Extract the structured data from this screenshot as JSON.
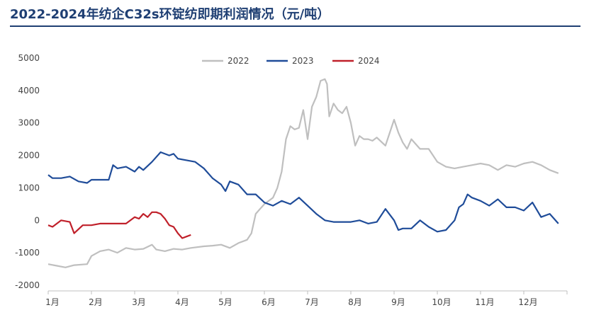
{
  "title": "2022-2024年纺企C32s环锭纺即期利润情况（元/吨）",
  "chart_data": {
    "type": "line",
    "title": "2022-2024年纺企C32s环锭纺即期利润情况（元/吨）",
    "xlabel": "",
    "ylabel": "",
    "x_unit": "month",
    "xlim": [
      1,
      13
    ],
    "ylim": [
      -2000,
      5000
    ],
    "y_ticks": [
      -2000,
      -1000,
      0,
      1000,
      2000,
      3000,
      4000,
      5000
    ],
    "y_tick_labels": [
      "-2000",
      "-1000",
      "0",
      "1000",
      "2000",
      "3000",
      "4000",
      "5000"
    ],
    "x_ticks": [
      1,
      2,
      3,
      4,
      5,
      6,
      7,
      8,
      9,
      10,
      11,
      12
    ],
    "x_tick_labels": [
      "1月",
      "2月",
      "3月",
      "4月",
      "5月",
      "6月",
      "7月",
      "8月",
      "9月",
      "10月",
      "11月",
      "12月"
    ],
    "grid": false,
    "legend_position": "top-center",
    "series": [
      {
        "name": "2022",
        "color": "#bfbfbf",
        "x": [
          1.0,
          1.2,
          1.4,
          1.6,
          1.9,
          2.0,
          2.2,
          2.4,
          2.6,
          2.8,
          3.0,
          3.2,
          3.4,
          3.5,
          3.7,
          3.9,
          4.1,
          4.3,
          4.6,
          4.8,
          5.0,
          5.2,
          5.4,
          5.6,
          5.7,
          5.8,
          5.9,
          6.0,
          6.1,
          6.2,
          6.3,
          6.4,
          6.5,
          6.6,
          6.7,
          6.8,
          6.9,
          7.0,
          7.1,
          7.2,
          7.3,
          7.4,
          7.45,
          7.5,
          7.6,
          7.7,
          7.8,
          7.9,
          8.0,
          8.1,
          8.2,
          8.3,
          8.4,
          8.5,
          8.6,
          8.8,
          9.0,
          9.1,
          9.2,
          9.3,
          9.4,
          9.6,
          9.8,
          10.0,
          10.2,
          10.4,
          10.6,
          10.8,
          11.0,
          11.2,
          11.4,
          11.6,
          11.8,
          12.0,
          12.2,
          12.4,
          12.6,
          12.8
        ],
        "values": [
          -1350,
          -1400,
          -1450,
          -1380,
          -1350,
          -1100,
          -950,
          -900,
          -1000,
          -850,
          -900,
          -880,
          -750,
          -900,
          -950,
          -880,
          -900,
          -850,
          -800,
          -780,
          -750,
          -850,
          -700,
          -600,
          -400,
          200,
          350,
          500,
          600,
          700,
          1000,
          1500,
          2500,
          2900,
          2800,
          2850,
          3400,
          2500,
          3500,
          3800,
          4300,
          4350,
          4200,
          3200,
          3600,
          3400,
          3300,
          3500,
          3000,
          2300,
          2600,
          2500,
          2500,
          2450,
          2550,
          2300,
          3100,
          2700,
          2400,
          2200,
          2500,
          2200,
          2200,
          1800,
          1650,
          1600,
          1650,
          1700,
          1750,
          1700,
          1550,
          1700,
          1650,
          1750,
          1800,
          1700,
          1550,
          1450
        ]
      },
      {
        "name": "2023",
        "color": "#1f4c99",
        "x": [
          1.0,
          1.1,
          1.3,
          1.5,
          1.7,
          1.9,
          2.0,
          2.2,
          2.4,
          2.5,
          2.6,
          2.8,
          3.0,
          3.1,
          3.2,
          3.4,
          3.6,
          3.8,
          3.9,
          4.0,
          4.2,
          4.4,
          4.6,
          4.8,
          5.0,
          5.1,
          5.2,
          5.4,
          5.6,
          5.8,
          6.0,
          6.2,
          6.4,
          6.6,
          6.8,
          7.0,
          7.2,
          7.4,
          7.6,
          7.8,
          8.0,
          8.2,
          8.4,
          8.6,
          8.8,
          9.0,
          9.1,
          9.2,
          9.4,
          9.6,
          9.8,
          10.0,
          10.2,
          10.4,
          10.5,
          10.6,
          10.7,
          10.8,
          11.0,
          11.2,
          11.4,
          11.6,
          11.8,
          12.0,
          12.2,
          12.4,
          12.6,
          12.8
        ],
        "values": [
          1400,
          1300,
          1300,
          1350,
          1200,
          1150,
          1250,
          1250,
          1250,
          1700,
          1600,
          1650,
          1500,
          1650,
          1550,
          1800,
          2100,
          2000,
          2050,
          1900,
          1850,
          1800,
          1600,
          1300,
          1100,
          900,
          1200,
          1100,
          800,
          800,
          550,
          450,
          600,
          500,
          700,
          450,
          200,
          0,
          -50,
          -50,
          -50,
          0,
          -100,
          -50,
          350,
          0,
          -300,
          -250,
          -250,
          0,
          -200,
          -350,
          -300,
          0,
          400,
          500,
          800,
          700,
          600,
          450,
          650,
          400,
          400,
          300,
          550,
          100,
          200,
          -100
        ]
      },
      {
        "name": "2024",
        "color": "#c0202a",
        "x": [
          1.0,
          1.1,
          1.3,
          1.5,
          1.6,
          1.8,
          2.0,
          2.2,
          2.4,
          2.6,
          2.8,
          3.0,
          3.1,
          3.2,
          3.3,
          3.4,
          3.5,
          3.6,
          3.7,
          3.8,
          3.9,
          4.0,
          4.1,
          4.2,
          4.3
        ],
        "values": [
          -150,
          -200,
          0,
          -50,
          -400,
          -150,
          -150,
          -100,
          -100,
          -100,
          -100,
          100,
          50,
          200,
          100,
          250,
          250,
          200,
          50,
          -150,
          -200,
          -400,
          -550,
          -500,
          -450
        ]
      }
    ]
  }
}
